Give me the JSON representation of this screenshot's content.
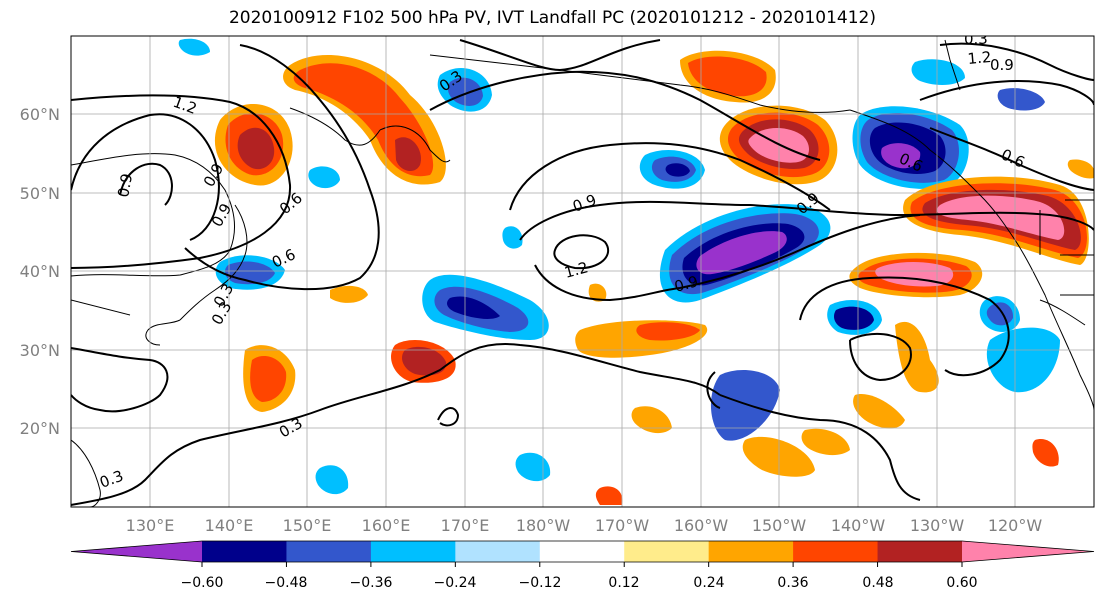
{
  "title": "2020100912 F102 500 hPa PV, IVT Landfall PC (2020101212 - 2020101412)",
  "lat_labels": [
    "60°N",
    "50°N",
    "40°N",
    "30°N",
    "20°N"
  ],
  "lon_labels": [
    "130°E",
    "140°E",
    "150°E",
    "160°E",
    "170°E",
    "180°W",
    "170°W",
    "160°W",
    "150°W",
    "140°W",
    "130°W",
    "120°W"
  ],
  "colorbar": {
    "colors": [
      "#9932cc",
      "#00008b",
      "#3357cc",
      "#00bfff",
      "#b0e2ff",
      "#ffffff",
      "#ffec8b",
      "#ffa500",
      "#ff4500",
      "#b22222",
      "#ff82ab"
    ],
    "tick_labels": [
      "−0.60",
      "−0.48",
      "−0.36",
      "−0.24",
      "−0.12",
      "0.12",
      "0.24",
      "0.36",
      "0.48",
      "0.60"
    ]
  },
  "contour_labels": [
    "1.2",
    "0.9",
    "0.6",
    "0.3",
    "0.3",
    "0.9",
    "1.2",
    "0.6",
    "0.3",
    "0.9",
    "0.9",
    "0.9",
    "0.3",
    "0.3",
    "1.2",
    "0.9",
    "0.6",
    "0.6",
    "0.3",
    "0.9"
  ]
}
